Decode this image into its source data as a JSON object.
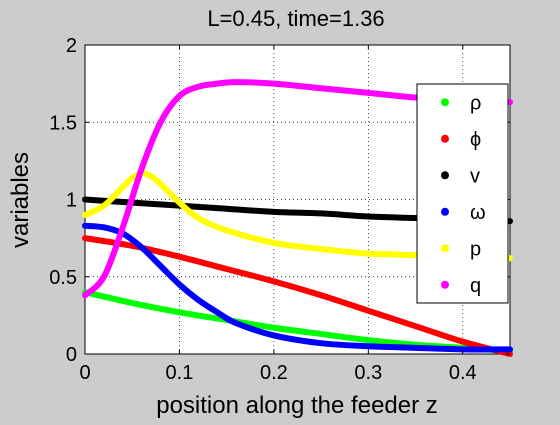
{
  "chart_data": {
    "type": "line",
    "title": "L=0.45, time=1.36",
    "xlabel": "position along the feeder z",
    "ylabel": "variables",
    "xlim": [
      0,
      0.45
    ],
    "ylim": [
      0,
      2
    ],
    "xticks": [
      0,
      0.1,
      0.2,
      0.3,
      0.4
    ],
    "xtick_labels": [
      "0",
      "0.1",
      "0.2",
      "0.3",
      "0.4"
    ],
    "yticks": [
      0,
      0.5,
      1,
      1.5,
      2
    ],
    "ytick_labels": [
      "0",
      "0.5",
      "1",
      "1.5",
      "2"
    ],
    "grid": true,
    "grid_style": "dotted",
    "legend_position": "right",
    "series": [
      {
        "name": "ρ",
        "color": "#00ff00",
        "x": [
          0,
          0.05,
          0.1,
          0.15,
          0.2,
          0.25,
          0.3,
          0.35,
          0.4,
          0.45
        ],
        "y": [
          0.4,
          0.33,
          0.27,
          0.22,
          0.17,
          0.13,
          0.09,
          0.06,
          0.04,
          0.02
        ]
      },
      {
        "name": "ϕ",
        "color": "#ff0000",
        "x": [
          0,
          0.05,
          0.1,
          0.15,
          0.2,
          0.25,
          0.3,
          0.35,
          0.4,
          0.45
        ],
        "y": [
          0.75,
          0.7,
          0.63,
          0.55,
          0.47,
          0.38,
          0.28,
          0.18,
          0.08,
          0.0
        ]
      },
      {
        "name": "v",
        "color": "#000000",
        "x": [
          0,
          0.05,
          0.1,
          0.15,
          0.2,
          0.25,
          0.3,
          0.35,
          0.4,
          0.45
        ],
        "y": [
          1.0,
          0.98,
          0.96,
          0.94,
          0.92,
          0.91,
          0.89,
          0.88,
          0.87,
          0.86
        ]
      },
      {
        "name": "ω",
        "color": "#0000ff",
        "x": [
          0,
          0.02,
          0.04,
          0.06,
          0.08,
          0.1,
          0.12,
          0.14,
          0.16,
          0.2,
          0.25,
          0.3,
          0.35,
          0.4,
          0.45
        ],
        "y": [
          0.83,
          0.82,
          0.78,
          0.69,
          0.57,
          0.45,
          0.35,
          0.27,
          0.2,
          0.12,
          0.07,
          0.05,
          0.04,
          0.03,
          0.03
        ]
      },
      {
        "name": "p",
        "color": "#ffff00",
        "x": [
          0,
          0.02,
          0.04,
          0.05,
          0.06,
          0.07,
          0.08,
          0.1,
          0.12,
          0.15,
          0.2,
          0.25,
          0.3,
          0.35,
          0.4,
          0.45
        ],
        "y": [
          0.9,
          0.96,
          1.08,
          1.14,
          1.17,
          1.15,
          1.1,
          0.98,
          0.88,
          0.8,
          0.72,
          0.68,
          0.65,
          0.64,
          0.63,
          0.62
        ]
      },
      {
        "name": "q",
        "color": "#ff00ff",
        "x": [
          0,
          0.02,
          0.04,
          0.06,
          0.08,
          0.1,
          0.12,
          0.14,
          0.16,
          0.2,
          0.25,
          0.3,
          0.35,
          0.4,
          0.45
        ],
        "y": [
          0.38,
          0.5,
          0.82,
          1.2,
          1.5,
          1.67,
          1.73,
          1.75,
          1.76,
          1.75,
          1.72,
          1.69,
          1.66,
          1.64,
          1.63
        ]
      }
    ]
  }
}
